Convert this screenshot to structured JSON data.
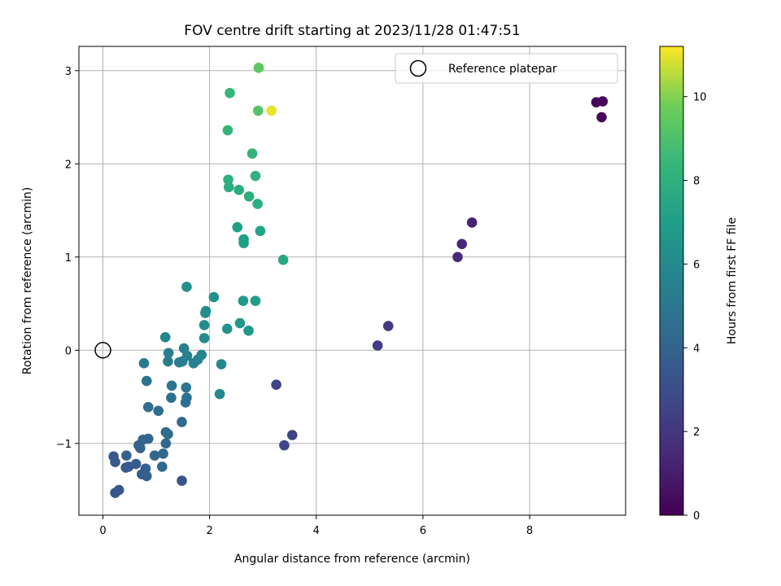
{
  "chart_data": {
    "type": "scatter",
    "title": "FOV centre drift starting at 2023/11/28 01:47:51",
    "xlabel": "Angular distance from reference (arcmin)",
    "ylabel": "Rotation from reference (arcmin)",
    "xlim": [
      -0.45,
      9.8
    ],
    "ylim": [
      -1.77,
      3.26
    ],
    "xticks": [
      0,
      2,
      4,
      6,
      8
    ],
    "xtick_labels": [
      "0",
      "2",
      "4",
      "6",
      "8"
    ],
    "yticks": [
      -1,
      0,
      1,
      2,
      3
    ],
    "ytick_labels": [
      "−1",
      "0",
      "1",
      "2",
      "3"
    ],
    "grid": true,
    "colormap": "viridis",
    "colorbar": {
      "label": "Hours from first FF file",
      "range": [
        0,
        11.2
      ],
      "ticks": [
        0,
        2,
        4,
        6,
        8,
        10
      ],
      "tick_labels": [
        "0",
        "2",
        "4",
        "6",
        "8",
        "10"
      ]
    },
    "legend": {
      "position": "top-right",
      "entries": [
        {
          "label": "Reference platepar",
          "marker": "open-circle"
        }
      ]
    },
    "reference_point": {
      "x": 0,
      "y": 0
    },
    "points": [
      {
        "x": 9.25,
        "y": 2.66,
        "c": 0.1
      },
      {
        "x": 9.37,
        "y": 2.67,
        "c": 0.2
      },
      {
        "x": 9.35,
        "y": 2.5,
        "c": 0.3
      },
      {
        "x": 6.92,
        "y": 1.37,
        "c": 1.2
      },
      {
        "x": 6.73,
        "y": 1.14,
        "c": 1.4
      },
      {
        "x": 6.65,
        "y": 1.0,
        "c": 1.5
      },
      {
        "x": 5.35,
        "y": 0.26,
        "c": 2.1
      },
      {
        "x": 5.15,
        "y": 0.05,
        "c": 2.3
      },
      {
        "x": 3.25,
        "y": -0.37,
        "c": 2.5
      },
      {
        "x": 3.55,
        "y": -0.91,
        "c": 2.6
      },
      {
        "x": 3.4,
        "y": -1.02,
        "c": 2.7
      },
      {
        "x": 1.48,
        "y": -1.4,
        "c": 3.3
      },
      {
        "x": 0.23,
        "y": -1.53,
        "c": 3.4
      },
      {
        "x": 0.3,
        "y": -1.5,
        "c": 3.4
      },
      {
        "x": 0.2,
        "y": -1.14,
        "c": 3.5
      },
      {
        "x": 0.23,
        "y": -1.2,
        "c": 3.5
      },
      {
        "x": 0.43,
        "y": -1.26,
        "c": 3.6
      },
      {
        "x": 0.48,
        "y": -1.25,
        "c": 3.6
      },
      {
        "x": 0.62,
        "y": -1.22,
        "c": 3.7
      },
      {
        "x": 0.73,
        "y": -1.33,
        "c": 3.7
      },
      {
        "x": 0.82,
        "y": -1.35,
        "c": 3.8
      },
      {
        "x": 0.8,
        "y": -1.27,
        "c": 3.8
      },
      {
        "x": 0.44,
        "y": -1.13,
        "c": 3.9
      },
      {
        "x": 0.7,
        "y": -1.05,
        "c": 3.9
      },
      {
        "x": 0.67,
        "y": -1.02,
        "c": 4.0
      },
      {
        "x": 0.75,
        "y": -0.96,
        "c": 4.0
      },
      {
        "x": 0.85,
        "y": -0.95,
        "c": 4.1
      },
      {
        "x": 0.97,
        "y": -1.13,
        "c": 4.1
      },
      {
        "x": 1.11,
        "y": -1.25,
        "c": 4.2
      },
      {
        "x": 1.13,
        "y": -1.11,
        "c": 4.2
      },
      {
        "x": 1.18,
        "y": -1.0,
        "c": 4.3
      },
      {
        "x": 1.18,
        "y": -0.88,
        "c": 4.3
      },
      {
        "x": 1.22,
        "y": -0.9,
        "c": 4.4
      },
      {
        "x": 1.48,
        "y": -0.77,
        "c": 4.4
      },
      {
        "x": 0.85,
        "y": -0.61,
        "c": 4.5
      },
      {
        "x": 1.04,
        "y": -0.65,
        "c": 4.5
      },
      {
        "x": 1.28,
        "y": -0.51,
        "c": 4.6
      },
      {
        "x": 1.55,
        "y": -0.56,
        "c": 4.7
      },
      {
        "x": 1.57,
        "y": -0.51,
        "c": 4.7
      },
      {
        "x": 0.82,
        "y": -0.33,
        "c": 4.8
      },
      {
        "x": 1.29,
        "y": -0.38,
        "c": 4.9
      },
      {
        "x": 1.56,
        "y": -0.4,
        "c": 5.0
      },
      {
        "x": 0.77,
        "y": -0.14,
        "c": 5.1
      },
      {
        "x": 1.22,
        "y": -0.12,
        "c": 5.2
      },
      {
        "x": 1.43,
        "y": -0.13,
        "c": 5.3
      },
      {
        "x": 1.49,
        "y": -0.12,
        "c": 5.3
      },
      {
        "x": 1.23,
        "y": -0.03,
        "c": 5.4
      },
      {
        "x": 1.52,
        "y": 0.02,
        "c": 5.5
      },
      {
        "x": 1.58,
        "y": -0.06,
        "c": 5.5
      },
      {
        "x": 1.7,
        "y": -0.14,
        "c": 5.6
      },
      {
        "x": 1.78,
        "y": -0.1,
        "c": 5.6
      },
      {
        "x": 1.85,
        "y": -0.05,
        "c": 5.7
      },
      {
        "x": 1.17,
        "y": 0.14,
        "c": 5.8
      },
      {
        "x": 2.22,
        "y": -0.15,
        "c": 5.9
      },
      {
        "x": 2.19,
        "y": -0.47,
        "c": 6.0
      },
      {
        "x": 1.9,
        "y": 0.13,
        "c": 6.1
      },
      {
        "x": 1.9,
        "y": 0.27,
        "c": 6.1
      },
      {
        "x": 1.92,
        "y": 0.4,
        "c": 6.2
      },
      {
        "x": 1.93,
        "y": 0.42,
        "c": 6.2
      },
      {
        "x": 1.57,
        "y": 0.68,
        "c": 6.3
      },
      {
        "x": 2.08,
        "y": 0.57,
        "c": 6.4
      },
      {
        "x": 2.33,
        "y": 0.23,
        "c": 6.5
      },
      {
        "x": 2.57,
        "y": 0.29,
        "c": 6.6
      },
      {
        "x": 2.73,
        "y": 0.21,
        "c": 6.7
      },
      {
        "x": 2.63,
        "y": 0.53,
        "c": 6.8
      },
      {
        "x": 2.86,
        "y": 0.53,
        "c": 6.9
      },
      {
        "x": 2.64,
        "y": 1.15,
        "c": 7.0
      },
      {
        "x": 2.64,
        "y": 1.19,
        "c": 7.0
      },
      {
        "x": 2.52,
        "y": 1.32,
        "c": 7.1
      },
      {
        "x": 2.95,
        "y": 1.28,
        "c": 7.2
      },
      {
        "x": 3.38,
        "y": 0.97,
        "c": 7.6
      },
      {
        "x": 2.36,
        "y": 1.75,
        "c": 7.7
      },
      {
        "x": 2.55,
        "y": 1.72,
        "c": 7.8
      },
      {
        "x": 2.74,
        "y": 1.65,
        "c": 7.9
      },
      {
        "x": 2.9,
        "y": 1.57,
        "c": 7.9
      },
      {
        "x": 2.35,
        "y": 1.83,
        "c": 8.0
      },
      {
        "x": 2.86,
        "y": 1.87,
        "c": 8.1
      },
      {
        "x": 2.8,
        "y": 2.11,
        "c": 8.2
      },
      {
        "x": 2.34,
        "y": 2.36,
        "c": 8.3
      },
      {
        "x": 2.38,
        "y": 2.76,
        "c": 8.4
      },
      {
        "x": 2.91,
        "y": 2.57,
        "c": 9.1
      },
      {
        "x": 2.92,
        "y": 3.03,
        "c": 9.3
      },
      {
        "x": 3.16,
        "y": 2.57,
        "c": 11.0
      }
    ]
  }
}
